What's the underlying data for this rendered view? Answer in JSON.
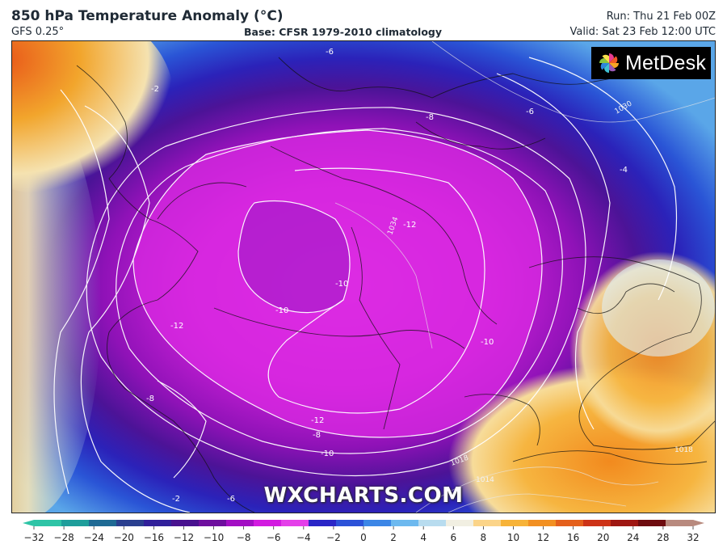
{
  "header": {
    "title": "850 hPa Temperature Anomaly (°C)",
    "model": "GFS 0.25°",
    "base": "Base: CFSR 1979-2010 climatology",
    "run": "Run: Thu 21 Feb 00Z",
    "valid": "Valid: Sat 23 Feb 12:00 UTC"
  },
  "logo": {
    "text": "MetDesk",
    "icon": "pinwheel-icon"
  },
  "watermark": "WXCHARTS.COM",
  "map_labels": {
    "contours": [
      {
        "v": "-6"
      },
      {
        "v": "-2"
      },
      {
        "v": "-8"
      },
      {
        "v": "-6"
      },
      {
        "v": "-4"
      },
      {
        "v": "-12"
      },
      {
        "v": "-10"
      },
      {
        "v": "-10"
      },
      {
        "v": "-12"
      },
      {
        "v": "-10"
      },
      {
        "v": "-8"
      },
      {
        "v": "-12"
      },
      {
        "v": "-8"
      },
      {
        "v": "-10"
      },
      {
        "v": "-6"
      },
      {
        "v": "-2"
      }
    ],
    "isobars": [
      "1030",
      "1034",
      "1018",
      "1014",
      "1018"
    ]
  },
  "colorbar": {
    "ticks": [
      "−32",
      "−28",
      "−24",
      "−20",
      "−16",
      "−12",
      "−10",
      "−8",
      "−6",
      "−4",
      "−2",
      "0",
      "2",
      "4",
      "6",
      "8",
      "10",
      "12",
      "16",
      "20",
      "24",
      "28",
      "32"
    ],
    "colors": [
      "#2ec4a6",
      "#1f9e9b",
      "#1f6a94",
      "#2a3f8f",
      "#31209a",
      "#48128f",
      "#6e0f9e",
      "#a30fc4",
      "#d21be0",
      "#e43fe9",
      "#2a26c7",
      "#2c52d8",
      "#3c86e6",
      "#6db9ef",
      "#b8dcef",
      "#f1efe2",
      "#fbd489",
      "#f7b338",
      "#f29022",
      "#e4601c",
      "#cd3317",
      "#9f1712",
      "#6e0c0f",
      "#b88a7e"
    ]
  }
}
